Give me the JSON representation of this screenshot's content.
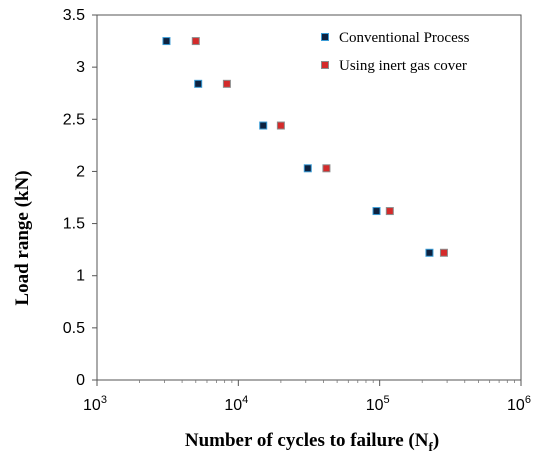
{
  "chart_data": {
    "type": "scatter",
    "xscale": "log",
    "xlim": [
      1000,
      1000000
    ],
    "ylim": [
      0,
      3.5
    ],
    "xlabel": "Number of cycles to failure (N",
    "xlabel_subscript": "f",
    "xlabel_close": ")",
    "ylabel": "Load range (kN)",
    "x_ticks": [
      {
        "value": 1000,
        "base": "10",
        "exp": "3"
      },
      {
        "value": 10000,
        "base": "10",
        "exp": "4"
      },
      {
        "value": 100000,
        "base": "10",
        "exp": "5"
      },
      {
        "value": 1000000,
        "base": "10",
        "exp": "6"
      }
    ],
    "y_ticks": [
      {
        "value": 0,
        "label": "0"
      },
      {
        "value": 0.5,
        "label": "0.5"
      },
      {
        "value": 1,
        "label": "1"
      },
      {
        "value": 1.5,
        "label": "1.5"
      },
      {
        "value": 2,
        "label": "2"
      },
      {
        "value": 2.5,
        "label": "2.5"
      },
      {
        "value": 3,
        "label": "3"
      },
      {
        "value": 3.5,
        "label": "3.5"
      }
    ],
    "grid": false,
    "legend_position": "top-right",
    "series": [
      {
        "name": "Conventional Process",
        "color": "#0d2240",
        "edge": "#3a9bd5",
        "points": [
          {
            "x": 3100,
            "y": 3.25
          },
          {
            "x": 5200,
            "y": 2.84
          },
          {
            "x": 15000,
            "y": 2.44
          },
          {
            "x": 31000,
            "y": 2.03
          },
          {
            "x": 95000,
            "y": 1.62
          },
          {
            "x": 225000,
            "y": 1.22
          }
        ]
      },
      {
        "name": "Using inert gas cover",
        "color": "#d42a2a",
        "edge": "#8c8c8c",
        "points": [
          {
            "x": 5000,
            "y": 3.25
          },
          {
            "x": 8300,
            "y": 2.84
          },
          {
            "x": 20000,
            "y": 2.44
          },
          {
            "x": 42000,
            "y": 2.03
          },
          {
            "x": 118000,
            "y": 1.62
          },
          {
            "x": 285000,
            "y": 1.22
          }
        ]
      }
    ]
  }
}
